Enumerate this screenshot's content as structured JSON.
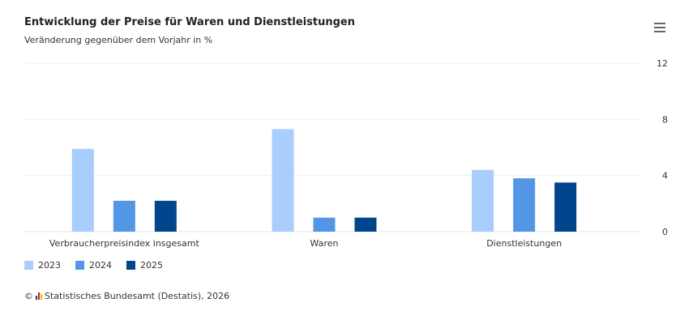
{
  "title": "Entwicklung der Preise für Waren und Dienstleistungen",
  "subtitle": "Veränderung gegenüber dem Vorjahr in %",
  "menu_icon": "hamburger-menu-icon",
  "credits": "Statistisches Bundesamt (Destatis), 2026",
  "copyright_symbol": "©",
  "chart_data": {
    "type": "bar",
    "title": "Entwicklung der Preise für Waren und Dienstleistungen",
    "subtitle": "Veränderung gegenüber dem Vorjahr in %",
    "categories": [
      "Verbraucherpreisindex insgesamt",
      "Waren",
      "Dienstleistungen"
    ],
    "series": [
      {
        "name": "2023",
        "color": "#a9cdfd",
        "values": [
          5.9,
          7.3,
          4.4
        ]
      },
      {
        "name": "2024",
        "color": "#5496e6",
        "values": [
          2.2,
          1.0,
          3.8
        ]
      },
      {
        "name": "2025",
        "color": "#00468c",
        "values": [
          2.2,
          1.0,
          3.5
        ]
      }
    ],
    "yaxis": {
      "position": "right",
      "ticks": [
        "0",
        "4",
        "8",
        "12"
      ],
      "ylim": [
        0,
        12
      ]
    },
    "grid": true,
    "legend": "bottom-left"
  }
}
